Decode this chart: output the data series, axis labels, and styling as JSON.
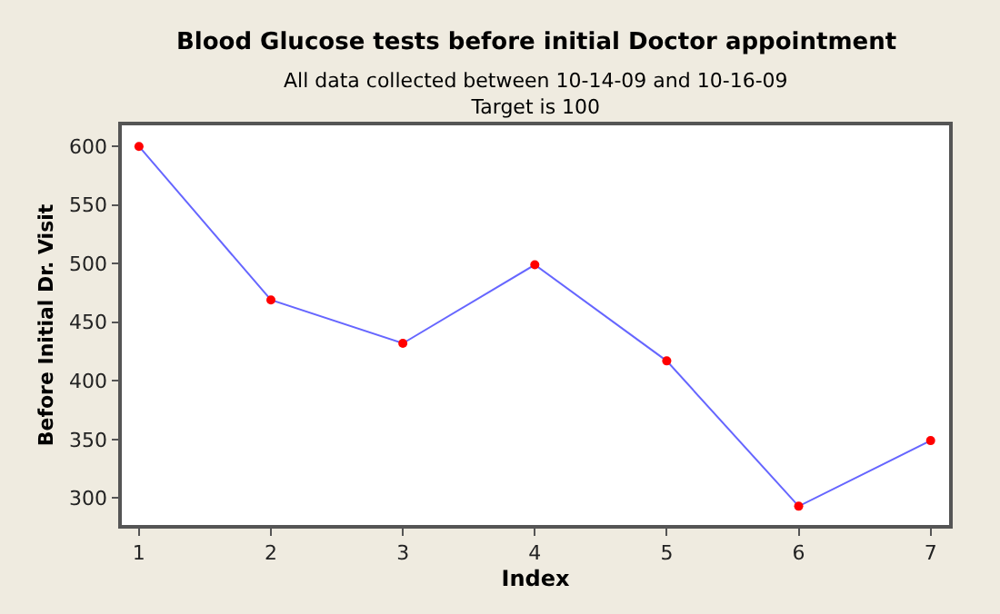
{
  "chart_data": {
    "type": "line",
    "title": "Blood Glucose tests before initial Doctor appointment",
    "subtitle": "All data collected between 10-14-09 and 10-16-09\nTarget is 100",
    "xlabel": "Index",
    "ylabel": "Before Initial Dr. Visit",
    "x": [
      1,
      2,
      3,
      4,
      5,
      6,
      7
    ],
    "series": [
      {
        "color": "#6666ff",
        "colors": [
          "#ff0000",
          "#ff0000",
          "#ff0000",
          "#ff0000",
          "#ff0000",
          "#ff0000",
          "#ff0000"
        ],
        "values": [
          600,
          469,
          432,
          499,
          417,
          293,
          349
        ]
      }
    ],
    "xlim": [
      0.87,
      7.14
    ],
    "xticks": [
      1,
      2,
      3,
      4,
      5,
      6,
      7
    ],
    "ylim": [
      277,
      618
    ],
    "yticks": [
      300,
      350,
      400,
      450,
      500,
      550,
      600
    ],
    "marker": "circle",
    "line_style": "solid"
  }
}
